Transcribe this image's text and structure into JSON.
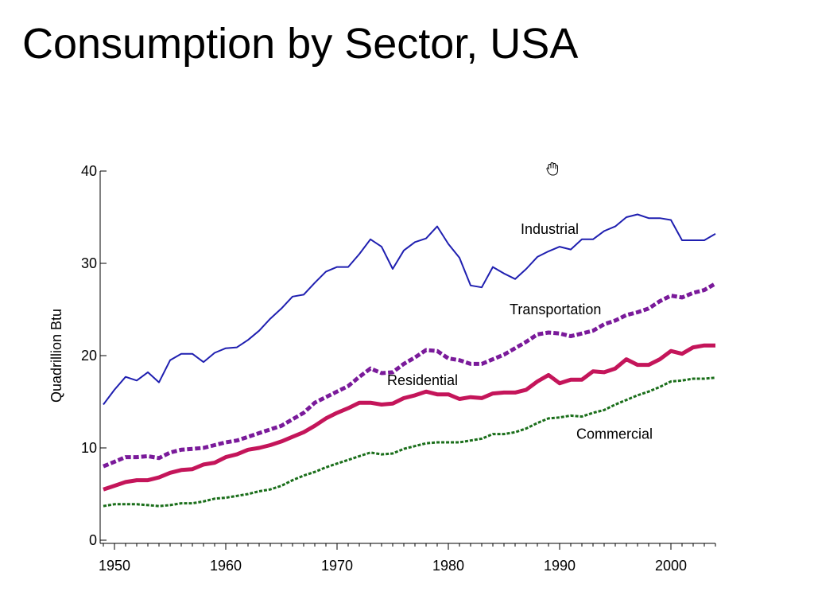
{
  "slide": {
    "title": "Consumption by Sector, USA"
  },
  "cursor": {
    "icon": "grab-hand-icon"
  },
  "chart_data": {
    "type": "line",
    "title": "",
    "xlabel": "",
    "ylabel": "Quadrillion Btu",
    "xlim": [
      1949,
      2004
    ],
    "ylim": [
      0,
      40
    ],
    "x_ticks": [
      1950,
      1960,
      1970,
      1980,
      1990,
      2000
    ],
    "y_ticks": [
      0,
      10,
      20,
      30,
      40
    ],
    "grid": false,
    "legend": "inline labels",
    "x": [
      1949,
      1950,
      1951,
      1952,
      1953,
      1954,
      1955,
      1956,
      1957,
      1958,
      1959,
      1960,
      1961,
      1962,
      1963,
      1964,
      1965,
      1966,
      1967,
      1968,
      1969,
      1970,
      1971,
      1972,
      1973,
      1974,
      1975,
      1976,
      1977,
      1978,
      1979,
      1980,
      1981,
      1982,
      1983,
      1984,
      1985,
      1986,
      1987,
      1988,
      1989,
      1990,
      1991,
      1992,
      1993,
      1994,
      1995,
      1996,
      1997,
      1998,
      1999,
      2000,
      2001,
      2002,
      2003,
      2004
    ],
    "series": [
      {
        "name": "Industrial",
        "color": "#1f1fb0",
        "style": "solid",
        "values": [
          14.7,
          16.3,
          17.7,
          17.3,
          18.2,
          17.1,
          19.5,
          20.2,
          20.2,
          19.3,
          20.3,
          20.8,
          20.9,
          21.7,
          22.7,
          24.0,
          25.1,
          26.4,
          26.6,
          27.9,
          29.1,
          29.6,
          29.6,
          31.0,
          32.6,
          31.8,
          29.4,
          31.4,
          32.3,
          32.7,
          34.0,
          32.1,
          30.6,
          27.6,
          27.4,
          29.6,
          28.9,
          28.3,
          29.4,
          30.7,
          31.3,
          31.8,
          31.5,
          32.6,
          32.6,
          33.5,
          34.0,
          35.0,
          35.3,
          34.9,
          34.9,
          34.7,
          32.5,
          32.5,
          32.5,
          33.2
        ],
        "label": "Industrial"
      },
      {
        "name": "Transportation",
        "color": "#7a1a9a",
        "style": "dashed",
        "values": [
          8.0,
          8.5,
          9.0,
          9.0,
          9.1,
          8.9,
          9.5,
          9.8,
          9.9,
          10.0,
          10.3,
          10.6,
          10.8,
          11.2,
          11.6,
          12.0,
          12.4,
          13.1,
          13.8,
          14.9,
          15.5,
          16.1,
          16.7,
          17.7,
          18.6,
          18.1,
          18.2,
          19.1,
          19.8,
          20.6,
          20.5,
          19.7,
          19.5,
          19.1,
          19.1,
          19.6,
          20.1,
          20.8,
          21.5,
          22.3,
          22.5,
          22.4,
          22.1,
          22.4,
          22.7,
          23.4,
          23.8,
          24.4,
          24.7,
          25.1,
          25.9,
          26.5,
          26.3,
          26.8,
          27.1,
          27.8
        ],
        "label": "Transportation"
      },
      {
        "name": "Residential",
        "color": "#c4155a",
        "style": "solid",
        "values": [
          5.5,
          5.9,
          6.3,
          6.5,
          6.5,
          6.8,
          7.3,
          7.6,
          7.7,
          8.2,
          8.4,
          9.0,
          9.3,
          9.8,
          10.0,
          10.3,
          10.7,
          11.2,
          11.7,
          12.4,
          13.2,
          13.8,
          14.3,
          14.9,
          14.9,
          14.7,
          14.8,
          15.4,
          15.7,
          16.1,
          15.8,
          15.8,
          15.3,
          15.5,
          15.4,
          15.9,
          16.0,
          16.0,
          16.3,
          17.2,
          17.9,
          17.0,
          17.4,
          17.4,
          18.3,
          18.2,
          18.6,
          19.6,
          19.0,
          19.0,
          19.6,
          20.5,
          20.2,
          20.9,
          21.1,
          21.1
        ],
        "label": "Residential"
      },
      {
        "name": "Commercial",
        "color": "#1a6e1a",
        "style": "dotted",
        "values": [
          3.7,
          3.9,
          3.9,
          3.9,
          3.8,
          3.7,
          3.8,
          4.0,
          4.0,
          4.2,
          4.5,
          4.6,
          4.8,
          5.0,
          5.3,
          5.5,
          5.9,
          6.5,
          7.0,
          7.4,
          7.9,
          8.3,
          8.7,
          9.1,
          9.5,
          9.3,
          9.4,
          9.9,
          10.2,
          10.5,
          10.6,
          10.6,
          10.6,
          10.8,
          11.0,
          11.5,
          11.5,
          11.7,
          12.1,
          12.7,
          13.2,
          13.3,
          13.5,
          13.4,
          13.8,
          14.1,
          14.7,
          15.2,
          15.7,
          16.1,
          16.6,
          17.2,
          17.3,
          17.5,
          17.5,
          17.6
        ],
        "label": "Commercial"
      }
    ]
  }
}
